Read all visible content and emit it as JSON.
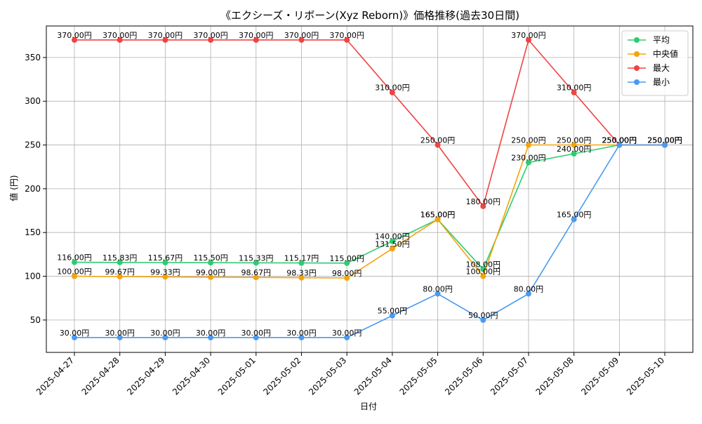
{
  "chart_data": {
    "type": "line",
    "title": "《エクシーズ・リボーン(Xyz Reborn)》価格推移(過去30日間)",
    "xlabel": "日付",
    "ylabel": "値 (円)",
    "categories": [
      "2025-04-27",
      "2025-04-28",
      "2025-04-29",
      "2025-04-30",
      "2025-05-01",
      "2025-05-02",
      "2025-05-03",
      "2025-05-04",
      "2025-05-05",
      "2025-05-06",
      "2025-05-07",
      "2025-05-08",
      "2025-05-09",
      "2025-05-10"
    ],
    "ylim": [
      13,
      386
    ],
    "yticks": [
      50,
      100,
      150,
      200,
      250,
      300,
      350
    ],
    "grid": true,
    "legend_position": "top-right",
    "value_suffix": "円",
    "series": [
      {
        "name": "平均",
        "color": "#2ecc71",
        "values": [
          116.0,
          115.83,
          115.67,
          115.5,
          115.33,
          115.17,
          115.0,
          140.0,
          165.0,
          108.0,
          230.0,
          240.0,
          250.0,
          250.0
        ]
      },
      {
        "name": "中央値",
        "color": "#f5a30a",
        "values": [
          100.0,
          99.67,
          99.33,
          99.0,
          98.67,
          98.33,
          98.0,
          131.5,
          165.0,
          100.0,
          250.0,
          250.0,
          250.0,
          250.0
        ]
      },
      {
        "name": "最大",
        "color": "#ef4444",
        "values": [
          370.0,
          370.0,
          370.0,
          370.0,
          370.0,
          370.0,
          370.0,
          310.0,
          250.0,
          180.0,
          370.0,
          310.0,
          250.0,
          250.0
        ]
      },
      {
        "name": "最小",
        "color": "#4a9af0",
        "values": [
          30.0,
          30.0,
          30.0,
          30.0,
          30.0,
          30.0,
          30.0,
          55.0,
          80.0,
          50.0,
          80.0,
          165.0,
          250.0,
          250.0
        ]
      }
    ]
  }
}
